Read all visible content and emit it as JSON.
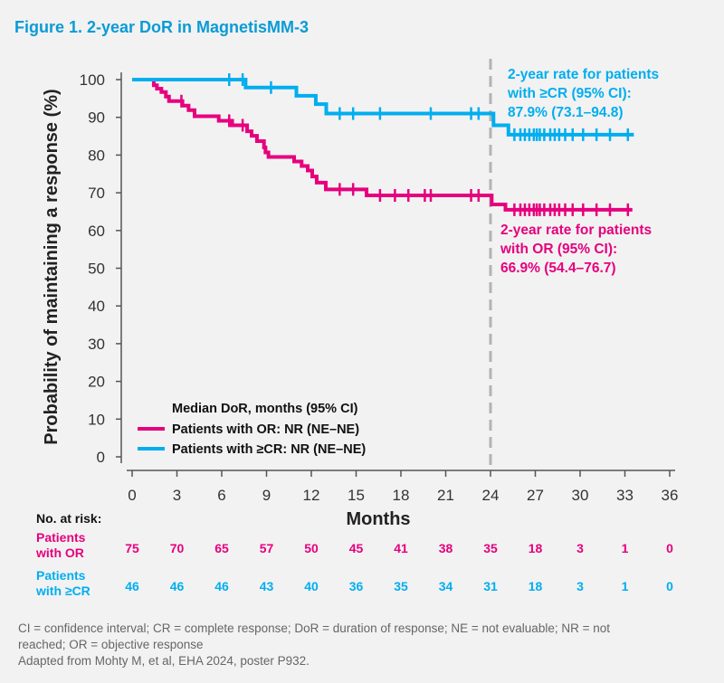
{
  "title": "Figure 1. 2-year DoR in MagnetisMM-3",
  "colors": {
    "or": "#e6007e",
    "cr": "#00aeef",
    "dashed": "#b3b3b3",
    "background": "#f2f2f2"
  },
  "chart_data": {
    "type": "line",
    "subtype": "kaplan-meier step",
    "xlabel": "Months",
    "ylabel": "Probability of maintaining a response (%)",
    "xlim": [
      0,
      36
    ],
    "ylim": [
      0,
      100
    ],
    "xticks": [
      0,
      3,
      6,
      9,
      12,
      15,
      18,
      21,
      24,
      27,
      30,
      33,
      36
    ],
    "yticks": [
      0,
      10,
      20,
      30,
      40,
      50,
      60,
      70,
      80,
      90,
      100
    ],
    "grid": false,
    "reference_line_x": 24,
    "legend": {
      "title": "Median DoR, months (95% CI)",
      "placement": "bottom-left",
      "entries": [
        "Patients with OR: NR (NE–NE)",
        "Patients with ≥CR: NR (NE–NE)"
      ]
    },
    "series": [
      {
        "name": "Patients with OR",
        "color_key": "or",
        "steps": [
          [
            0,
            100
          ],
          [
            1.45,
            98.5
          ],
          [
            1.66,
            97.6
          ],
          [
            1.96,
            96.7
          ],
          [
            2.26,
            95.5
          ],
          [
            2.47,
            94.3
          ],
          [
            3.37,
            93.1
          ],
          [
            3.78,
            91.9
          ],
          [
            4.18,
            90.3
          ],
          [
            5.8,
            89.1
          ],
          [
            6.7,
            87.9
          ],
          [
            7.7,
            86.3
          ],
          [
            8.0,
            85.1
          ],
          [
            8.36,
            83.7
          ],
          [
            8.83,
            82.0
          ],
          [
            8.93,
            80.7
          ],
          [
            9.13,
            79.5
          ],
          [
            10.85,
            78.3
          ],
          [
            11.35,
            77.1
          ],
          [
            11.76,
            75.9
          ],
          [
            12.06,
            74.3
          ],
          [
            12.36,
            72.7
          ],
          [
            12.97,
            70.9
          ],
          [
            15.7,
            69.3
          ],
          [
            24.08,
            66.9
          ],
          [
            25.0,
            65.5
          ],
          [
            33.5,
            65.5
          ]
        ],
        "censored": [
          3.3,
          6.5,
          7.4,
          13.9,
          14.8,
          16.6,
          17.6,
          18.5,
          19.6,
          20.0,
          22.7,
          23.2,
          25.6,
          26.0,
          26.3,
          26.6,
          26.9,
          27.1,
          27.3,
          27.6,
          28.0,
          28.3,
          28.6,
          29.0,
          29.5,
          30.2,
          31.1,
          32.0,
          33.2
        ]
      },
      {
        "name": "Patients with ≥CR",
        "color_key": "cr",
        "steps": [
          [
            0,
            100
          ],
          [
            7.6,
            97.9
          ],
          [
            11.0,
            95.7
          ],
          [
            12.3,
            93.5
          ],
          [
            13.0,
            91.0
          ],
          [
            24.2,
            87.9
          ],
          [
            25.2,
            85.4
          ],
          [
            33.6,
            85.4
          ]
        ],
        "censored": [
          6.5,
          7.4,
          9.3,
          13.9,
          14.8,
          16.6,
          20.0,
          22.7,
          23.2,
          25.6,
          26.0,
          26.3,
          26.6,
          26.9,
          27.1,
          27.3,
          27.6,
          28.0,
          28.3,
          28.6,
          29.0,
          29.5,
          30.2,
          31.1,
          32.0,
          33.2
        ]
      }
    ],
    "annotations": {
      "cr": [
        "2-year rate for patients",
        "with ≥CR (95% CI):",
        "87.9% (73.1–94.8)"
      ],
      "or": [
        "2-year rate for patients",
        "with OR (95% CI):",
        "66.9% (54.4–76.7)"
      ]
    },
    "risk_table": {
      "label": "No. at risk:",
      "rows": [
        {
          "label": [
            "Patients",
            "with OR"
          ],
          "color_key": "or",
          "values": [
            75,
            70,
            65,
            57,
            50,
            45,
            41,
            38,
            35,
            18,
            3,
            1,
            0
          ]
        },
        {
          "label": [
            "Patients",
            "with ≥CR"
          ],
          "color_key": "cr",
          "values": [
            46,
            46,
            46,
            43,
            40,
            36,
            35,
            34,
            31,
            18,
            3,
            1,
            0
          ]
        }
      ]
    }
  },
  "footnotes": [
    "CI = confidence interval; CR = complete response; DoR = duration of response; NE = not evaluable; NR = not",
    "reached; OR = objective response",
    "Adapted from Mohty M, et al, EHA 2024, poster P932."
  ]
}
